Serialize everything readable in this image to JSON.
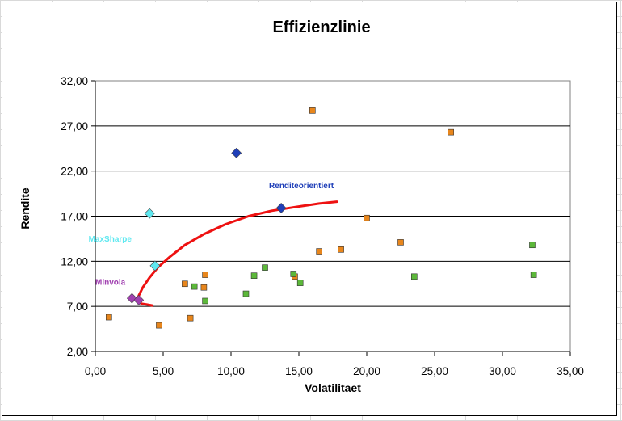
{
  "chart_data": {
    "type": "scatter",
    "title": "Effizienzlinie",
    "xlabel": "Volatilitaet",
    "ylabel": "Rendite",
    "xlim": [
      0,
      35
    ],
    "ylim": [
      2,
      32
    ],
    "xticks": [
      0,
      5,
      10,
      15,
      20,
      25,
      30,
      35
    ],
    "yticks": [
      2,
      7,
      12,
      17,
      22,
      27,
      32
    ],
    "xtick_labels": [
      "0,00",
      "5,00",
      "10,00",
      "15,00",
      "20,00",
      "25,00",
      "30,00",
      "35,00"
    ],
    "ytick_labels": [
      "2,00",
      "7,00",
      "12,00",
      "17,00",
      "22,00",
      "27,00",
      "32,00"
    ],
    "grid": "horizontal major gridlines",
    "legend": "none",
    "colors": {
      "orange": "#e8861c",
      "green": "#5cb83a",
      "curve": "#ee1111",
      "blue_diamond": "#1f3fb8",
      "cyan_diamond": "#5ee8f0",
      "purple_diamond": "#a040b0"
    },
    "series": [
      {
        "marker": "square",
        "color": "orange",
        "points": [
          [
            1.0,
            5.8
          ],
          [
            4.7,
            4.9
          ],
          [
            6.6,
            9.5
          ],
          [
            7.0,
            5.7
          ],
          [
            8.0,
            9.1
          ],
          [
            8.1,
            10.5
          ],
          [
            14.7,
            10.3
          ],
          [
            16.0,
            28.7
          ],
          [
            16.5,
            13.1
          ],
          [
            18.1,
            13.3
          ],
          [
            20.0,
            16.8
          ],
          [
            22.5,
            14.1
          ],
          [
            26.2,
            26.3
          ]
        ]
      },
      {
        "marker": "square",
        "color": "green",
        "points": [
          [
            7.3,
            9.2
          ],
          [
            8.1,
            7.6
          ],
          [
            11.1,
            8.4
          ],
          [
            11.7,
            10.4
          ],
          [
            12.5,
            11.3
          ],
          [
            14.6,
            10.6
          ],
          [
            15.1,
            9.6
          ],
          [
            23.5,
            10.3
          ],
          [
            32.2,
            13.8
          ],
          [
            32.3,
            10.5
          ]
        ]
      },
      {
        "marker": "diamond",
        "color": "blue_diamond",
        "points": [
          [
            10.4,
            24.0
          ],
          [
            13.7,
            17.9
          ]
        ]
      },
      {
        "marker": "diamond",
        "color": "cyan_diamond",
        "points": [
          [
            4.0,
            17.3
          ],
          [
            4.4,
            11.5
          ]
        ]
      },
      {
        "marker": "diamond",
        "color": "purple_diamond",
        "points": [
          [
            2.7,
            7.9
          ],
          [
            3.2,
            7.7
          ]
        ]
      }
    ],
    "frontier_curve": {
      "color": "curve",
      "points": [
        [
          4.2,
          7.1
        ],
        [
          3.8,
          7.2
        ],
        [
          3.4,
          7.3
        ],
        [
          3.1,
          7.6
        ],
        [
          3.2,
          8.2
        ],
        [
          3.5,
          9.1
        ],
        [
          4.0,
          10.2
        ],
        [
          4.6,
          11.3
        ],
        [
          5.5,
          12.5
        ],
        [
          6.6,
          13.8
        ],
        [
          8.0,
          15.0
        ],
        [
          9.6,
          16.1
        ],
        [
          11.3,
          17.0
        ],
        [
          13.0,
          17.6
        ],
        [
          14.7,
          18.0
        ],
        [
          16.5,
          18.4
        ],
        [
          17.8,
          18.6
        ]
      ]
    },
    "annotations": [
      {
        "text": "Renditeorientiert",
        "x": 12.8,
        "y": 20.1,
        "color": "blue_diamond"
      },
      {
        "text": "MaxSharpe",
        "x": -0.5,
        "y": 14.2,
        "color": "cyan_diamond"
      },
      {
        "text": "Minvola",
        "x": 0.0,
        "y": 9.4,
        "color": "purple_diamond"
      }
    ]
  }
}
